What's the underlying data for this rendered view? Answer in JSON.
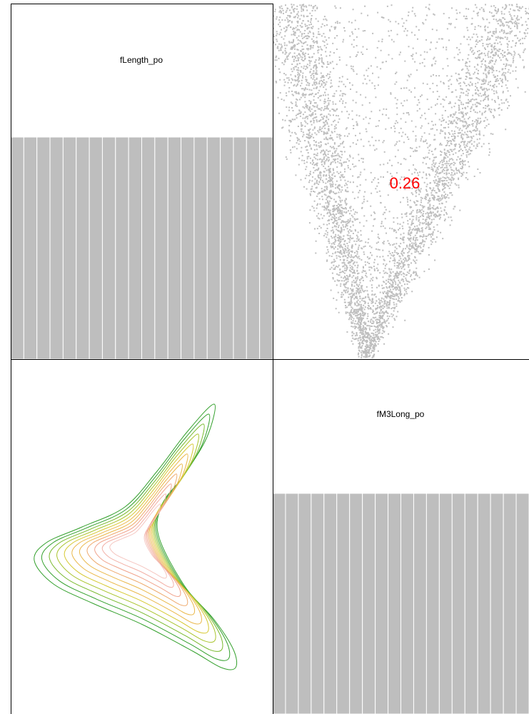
{
  "chart_data": {
    "type": "scatter-matrix",
    "variables": [
      "fLength_po",
      "fM3Long_po"
    ],
    "colors": {
      "bars": "#bebebe",
      "points": "#bebebe",
      "correlation_text": "#ff0000",
      "frame": "#000000",
      "contour_palette": [
        "#33a02c",
        "#77b82a",
        "#a8c32a",
        "#d6c830",
        "#eab84a",
        "#eeaa6e",
        "#f0a38c",
        "#f2b0a6",
        "#f5c6c0"
      ]
    },
    "panels": [
      {
        "row": 1,
        "col": 1,
        "kind": "histogram",
        "label": "fLength_po",
        "bin_count": 20,
        "relative_heights": [
          1,
          1,
          1,
          1,
          1,
          1,
          1,
          1,
          1,
          1,
          1,
          1,
          1,
          1,
          1,
          1,
          1,
          1,
          1,
          1
        ]
      },
      {
        "row": 1,
        "col": 2,
        "kind": "scatter",
        "correlation": "0.26",
        "shape": "v-shaped cloud, apex at bottom centre"
      },
      {
        "row": 2,
        "col": 1,
        "kind": "density-contour",
        "levels": 11,
        "shape": "boomerang; arms to upper-right and lower-right, vertex at left"
      },
      {
        "row": 2,
        "col": 2,
        "kind": "histogram",
        "label": "fM3Long_po",
        "bin_count": 20,
        "relative_heights": [
          1,
          1,
          1,
          1,
          1,
          1,
          1,
          1,
          1,
          1,
          1,
          1,
          1,
          1,
          1,
          1,
          1,
          1,
          1,
          1
        ]
      }
    ]
  }
}
